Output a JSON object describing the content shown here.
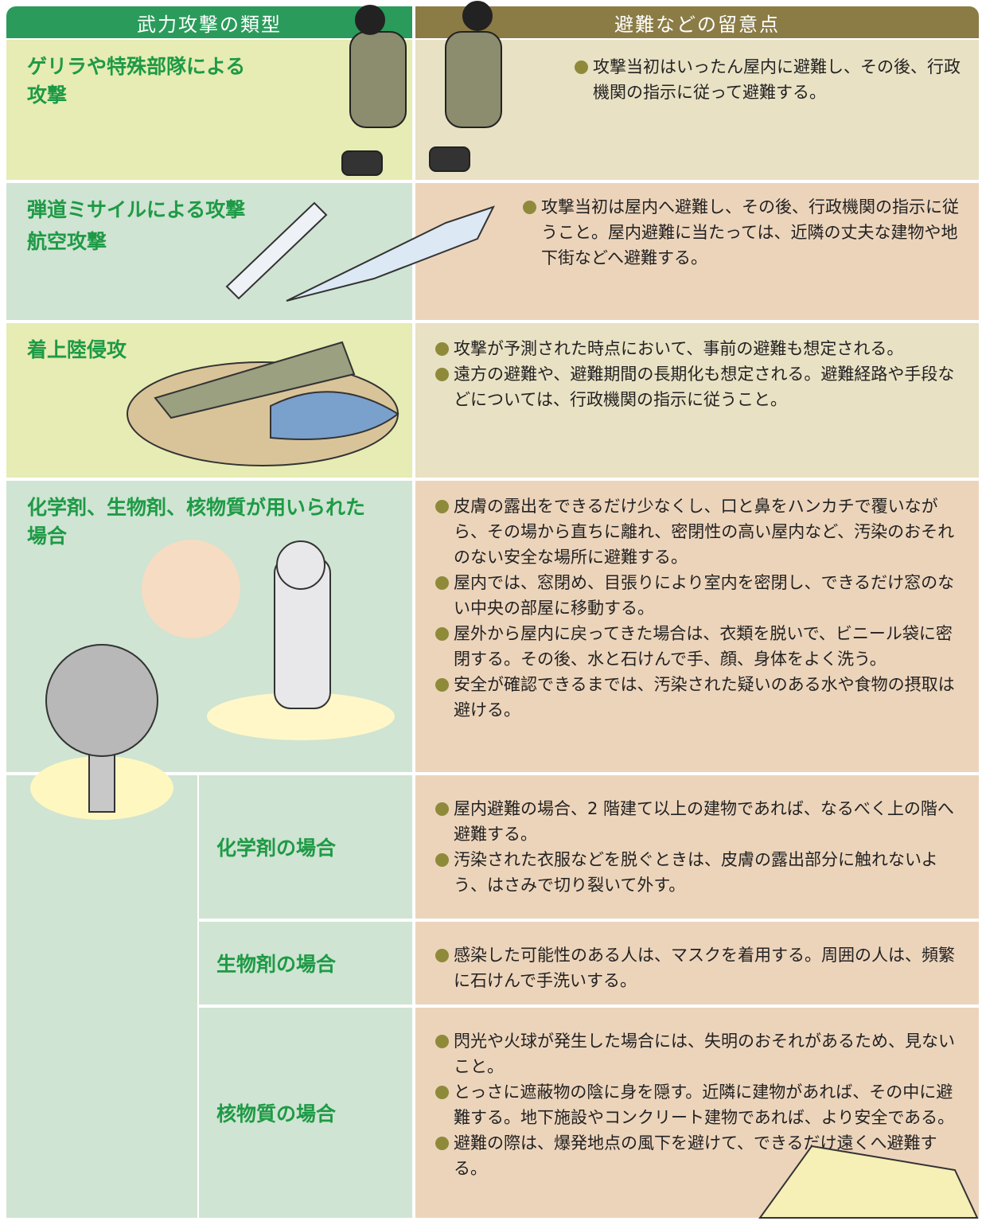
{
  "header": {
    "type_label": "武力攻撃の類型",
    "notes_label": "避難などの留意点"
  },
  "rows": [
    {
      "type_lines": [
        "ゲリラや特殊部隊による",
        "攻撃"
      ],
      "items": [
        "攻撃当初はいったん屋内に避難し、その後、行政機関の指示に従って避難する。"
      ]
    },
    {
      "type_lines": [
        "弾道ミサイルによる攻撃",
        "航空攻撃"
      ],
      "items": [
        "攻撃当初は屋内へ避難し、その後、行政機関の指示に従うこと。屋内避難に当たっては、近隣の丈夫な建物や地下街などへ避難する。"
      ]
    },
    {
      "type_lines": [
        "着上陸侵攻"
      ],
      "items": [
        "攻撃が予測された時点において、事前の避難も想定される。",
        "遠方の避難や、避難期間の長期化も想定される。避難経路や手段などについては、行政機関の指示に従うこと。"
      ]
    },
    {
      "type_lines": [
        "化学剤、生物剤、核物質が用いられた",
        "場合"
      ],
      "items": [
        "皮膚の露出をできるだけ少なくし、口と鼻をハンカチで覆いながら、その場から直ちに離れ、密閉性の高い屋内など、汚染のおそれのない安全な場所に避難する。",
        "屋内では、窓閉め、目張りにより室内を密閉し、できるだけ窓のない中央の部屋に移動する。",
        "屋外から屋内に戻ってきた場合は、衣類を脱いで、ビニール袋に密閉する。その後、水と石けんで手、顔、身体をよく洗う。",
        "安全が確認できるまでは、汚染された疑いのある水や食物の摂取は避ける。"
      ],
      "subrows": [
        {
          "label": "化学剤の場合",
          "items": [
            "屋内避難の場合、2 階建て以上の建物であれば、なるべく上の階へ避難する。",
            "汚染された衣服などを脱ぐときは、皮膚の露出部分に触れないよう、はさみで切り裂いて外す。"
          ]
        },
        {
          "label": "生物剤の場合",
          "items": [
            "感染した可能性のある人は、マスクを着用する。周囲の人は、頻繁に石けんで手洗いする。"
          ]
        },
        {
          "label": "核物質の場合",
          "items": [
            "閃光や火球が発生した場合には、失明のおそれがあるため、見ないこと。",
            "とっさに遮蔽物の陰に身を隠す。近隣に建物があれば、その中に避難する。地下施設やコンクリート建物であれば、より安全である。",
            "避難の際は、爆発地点の風下を避けて、できるだけ遠くへ避難する。"
          ]
        }
      ]
    }
  ]
}
